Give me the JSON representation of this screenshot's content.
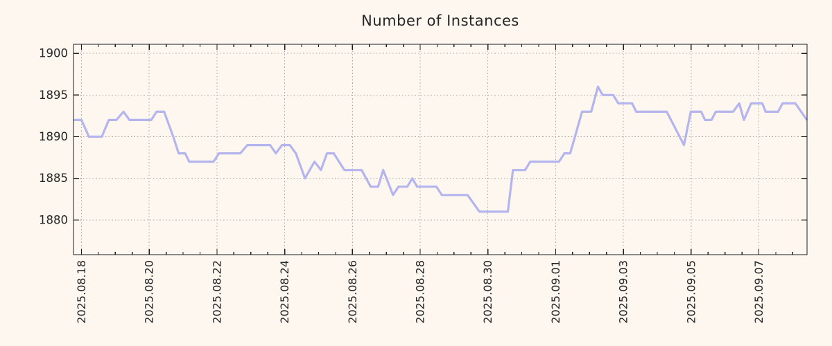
{
  "title": "Number of Instances",
  "colors": {
    "background": "#fdf7f0",
    "line": "#b4b5ee",
    "grid": "#a8a8a8",
    "axis": "#1c1c1c",
    "text": "#262626"
  },
  "chart_data": {
    "type": "line",
    "title": "Number of Instances",
    "grid": true,
    "legend": false,
    "x_axis": {
      "epoch_label": "2025.08.18",
      "unit": "days since 2025.08.18",
      "range_days": [
        -0.235,
        21.423
      ],
      "major_tick_days": [
        0,
        2,
        4,
        6,
        8,
        10,
        12,
        14,
        16,
        18,
        20
      ],
      "tick_labels": [
        "2025.08.18",
        "2025.08.20",
        "2025.08.22",
        "2025.08.24",
        "2025.08.26",
        "2025.08.28",
        "2025.08.30",
        "2025.09.01",
        "2025.09.03",
        "2025.09.05",
        "2025.09.07"
      ],
      "minor_tick_interval_days": 0.5
    },
    "y_axis": {
      "range": [
        1875.84,
        1901.09
      ],
      "tick_values": [
        1880,
        1885,
        1890,
        1895,
        1900
      ],
      "tick_labels": [
        "1880",
        "1885",
        "1890",
        "1895",
        "1900"
      ]
    },
    "series": [
      {
        "name": "instances",
        "points": [
          [
            -0.24,
            1892
          ],
          [
            0.0,
            1892
          ],
          [
            0.22,
            1890
          ],
          [
            0.6,
            1890
          ],
          [
            0.81,
            1892
          ],
          [
            1.03,
            1892
          ],
          [
            1.24,
            1893
          ],
          [
            1.42,
            1892
          ],
          [
            2.06,
            1892
          ],
          [
            2.22,
            1893
          ],
          [
            2.44,
            1893
          ],
          [
            2.71,
            1890
          ],
          [
            2.87,
            1888
          ],
          [
            3.06,
            1888
          ],
          [
            3.18,
            1887
          ],
          [
            3.9,
            1887
          ],
          [
            4.06,
            1888
          ],
          [
            4.69,
            1888
          ],
          [
            4.9,
            1889
          ],
          [
            5.57,
            1889
          ],
          [
            5.74,
            1888
          ],
          [
            5.92,
            1889
          ],
          [
            6.15,
            1889
          ],
          [
            6.33,
            1888
          ],
          [
            6.6,
            1885
          ],
          [
            6.88,
            1887
          ],
          [
            7.07,
            1886
          ],
          [
            7.25,
            1888
          ],
          [
            7.45,
            1888
          ],
          [
            7.76,
            1886
          ],
          [
            8.27,
            1886
          ],
          [
            8.54,
            1884
          ],
          [
            8.76,
            1884
          ],
          [
            8.91,
            1886
          ],
          [
            9.2,
            1883
          ],
          [
            9.36,
            1884
          ],
          [
            9.62,
            1884
          ],
          [
            9.77,
            1885
          ],
          [
            9.91,
            1884
          ],
          [
            10.48,
            1884
          ],
          [
            10.64,
            1883
          ],
          [
            11.4,
            1883
          ],
          [
            11.75,
            1881
          ],
          [
            12.59,
            1881
          ],
          [
            12.74,
            1886
          ],
          [
            13.1,
            1886
          ],
          [
            13.25,
            1887
          ],
          [
            14.1,
            1887
          ],
          [
            14.26,
            1888
          ],
          [
            14.43,
            1888
          ],
          [
            14.78,
            1893
          ],
          [
            15.05,
            1893
          ],
          [
            15.25,
            1896
          ],
          [
            15.39,
            1895
          ],
          [
            15.7,
            1895
          ],
          [
            15.85,
            1894
          ],
          [
            16.26,
            1894
          ],
          [
            16.38,
            1893
          ],
          [
            17.28,
            1893
          ],
          [
            17.79,
            1889
          ],
          [
            17.99,
            1893
          ],
          [
            18.3,
            1893
          ],
          [
            18.41,
            1892
          ],
          [
            18.6,
            1892
          ],
          [
            18.73,
            1893
          ],
          [
            19.24,
            1893
          ],
          [
            19.42,
            1894
          ],
          [
            19.56,
            1892
          ],
          [
            19.77,
            1894
          ],
          [
            20.1,
            1894
          ],
          [
            20.2,
            1893
          ],
          [
            20.57,
            1893
          ],
          [
            20.7,
            1894
          ],
          [
            21.08,
            1894
          ],
          [
            21.42,
            1892
          ]
        ]
      }
    ]
  }
}
